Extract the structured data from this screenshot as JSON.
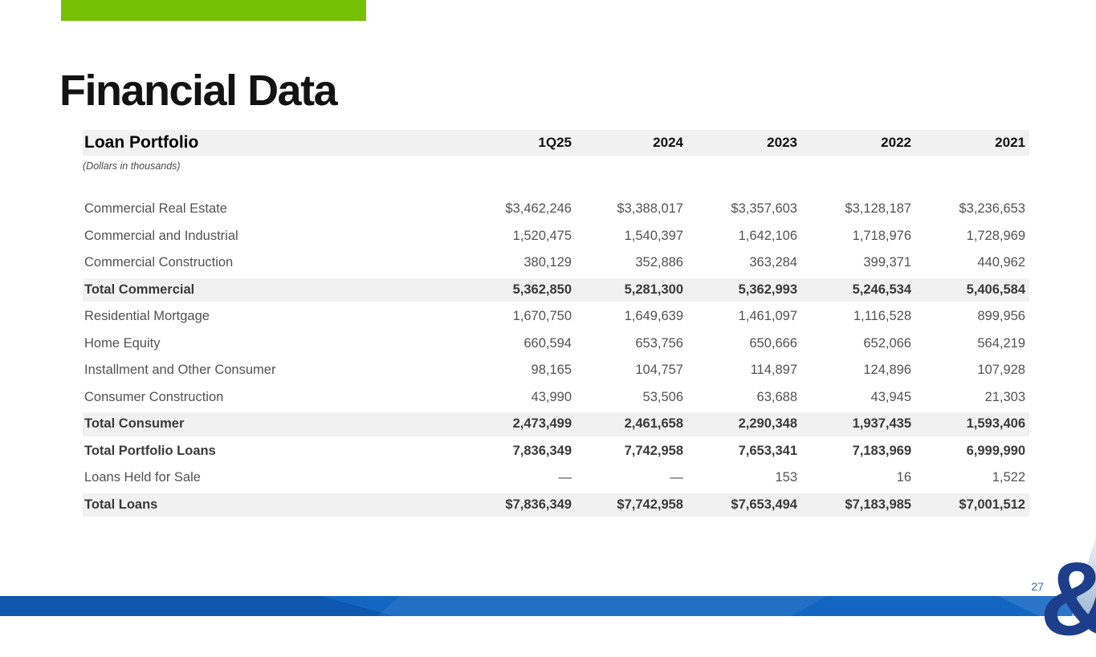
{
  "slide": {
    "title": "Financial Data",
    "page_number": "27",
    "ampersand_logo": "&",
    "colors": {
      "accent_green": "#76c006",
      "band_blue": "#1266c2",
      "band_blue_dark": "#0e57ae",
      "logo_navy": "#1d3e8a",
      "page_number_blue": "#2e6fc0",
      "row_shade_gray": "#f1f1f1"
    }
  },
  "table": {
    "title": "Loan Portfolio",
    "subtitle": "(Dollars in thousands)",
    "columns": [
      "1Q25",
      "2024",
      "2023",
      "2022",
      "2021"
    ],
    "rows": [
      {
        "label": "Commercial Real Estate",
        "values": [
          "$3,462,246",
          "$3,388,017",
          "$3,357,603",
          "$3,128,187",
          "$3,236,653"
        ],
        "bold": false,
        "shaded": false
      },
      {
        "label": "Commercial and Industrial",
        "values": [
          "1,520,475",
          "1,540,397",
          "1,642,106",
          "1,718,976",
          "1,728,969"
        ],
        "bold": false,
        "shaded": false
      },
      {
        "label": "Commercial Construction",
        "values": [
          "380,129",
          "352,886",
          "363,284",
          "399,371",
          "440,962"
        ],
        "bold": false,
        "shaded": false
      },
      {
        "label": "Total Commercial",
        "values": [
          "5,362,850",
          "5,281,300",
          "5,362,993",
          "5,246,534",
          "5,406,584"
        ],
        "bold": true,
        "shaded": true
      },
      {
        "label": "Residential Mortgage",
        "values": [
          "1,670,750",
          "1,649,639",
          "1,461,097",
          "1,116,528",
          "899,956"
        ],
        "bold": false,
        "shaded": false
      },
      {
        "label": "Home Equity",
        "values": [
          "660,594",
          "653,756",
          "650,666",
          "652,066",
          "564,219"
        ],
        "bold": false,
        "shaded": false
      },
      {
        "label": "Installment and Other Consumer",
        "values": [
          "98,165",
          "104,757",
          "114,897",
          "124,896",
          "107,928"
        ],
        "bold": false,
        "shaded": false
      },
      {
        "label": "Consumer Construction",
        "values": [
          "43,990",
          "53,506",
          "63,688",
          "43,945",
          "21,303"
        ],
        "bold": false,
        "shaded": false
      },
      {
        "label": "Total Consumer",
        "values": [
          "2,473,499",
          "2,461,658",
          "2,290,348",
          "1,937,435",
          "1,593,406"
        ],
        "bold": true,
        "shaded": true
      },
      {
        "label": "Total Portfolio Loans",
        "values": [
          "7,836,349",
          "7,742,958",
          "7,653,341",
          "7,183,969",
          "6,999,990"
        ],
        "bold": true,
        "shaded": false
      },
      {
        "label": "Loans Held for Sale",
        "values": [
          "—",
          "—",
          "153",
          "16",
          "1,522"
        ],
        "bold": false,
        "shaded": false
      },
      {
        "label": "Total Loans",
        "values": [
          "$7,836,349",
          "$7,742,958",
          "$7,653,494",
          "$7,183,985",
          "$7,001,512"
        ],
        "bold": true,
        "shaded": true
      }
    ]
  }
}
